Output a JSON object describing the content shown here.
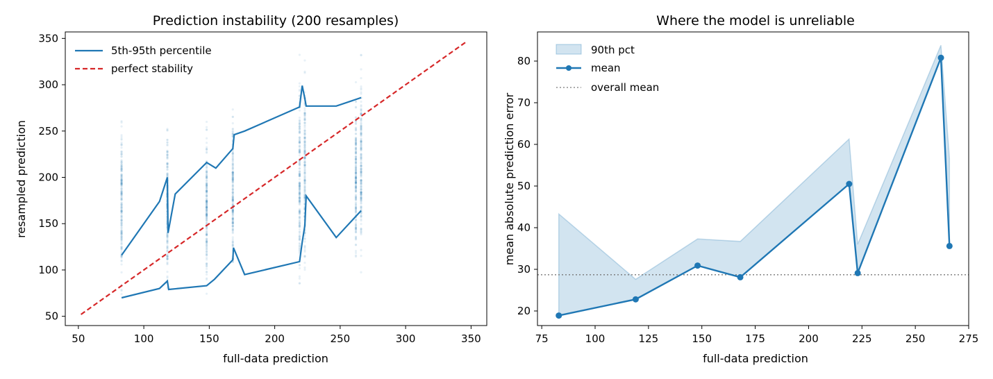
{
  "colors": {
    "blue": "#1f77b4",
    "red": "#d62728",
    "gray": "#777777"
  },
  "chart_data": [
    {
      "type": "scatter",
      "title": "Prediction instability (200 resamples)",
      "xlabel": "full-data prediction",
      "ylabel": "resampled prediction",
      "xlim": [
        40,
        362
      ],
      "ylim": [
        40,
        357
      ],
      "xticks": [
        50,
        100,
        150,
        200,
        250,
        300,
        350
      ],
      "yticks": [
        50,
        100,
        150,
        200,
        250,
        300,
        350
      ],
      "legend_position": "upper-left",
      "legend": [
        "5th-95th percentile",
        "perfect stability"
      ],
      "strips": [
        {
          "x": 83,
          "min": 59,
          "max": 280
        },
        {
          "x": 118,
          "min": 66,
          "max": 275
        },
        {
          "x": 148,
          "min": 52,
          "max": 275
        },
        {
          "x": 168,
          "min": 75,
          "max": 290
        },
        {
          "x": 219,
          "min": 52,
          "max": 345
        },
        {
          "x": 223,
          "min": 70,
          "max": 345
        },
        {
          "x": 262,
          "min": 80,
          "max": 318
        },
        {
          "x": 266,
          "min": 78,
          "max": 345
        }
      ],
      "percentile_upper": {
        "x": [
          83,
          112,
          118,
          118.5,
          124,
          148,
          155,
          168,
          169,
          177,
          219,
          221,
          223,
          224,
          247,
          266
        ],
        "y": [
          116,
          174,
          200,
          140,
          182,
          216,
          210,
          231,
          246,
          250,
          276,
          299,
          285,
          277,
          277,
          286
        ]
      },
      "percentile_lower": {
        "x": [
          83,
          112,
          118,
          119,
          148,
          154,
          168,
          168.5,
          177,
          219,
          221,
          223,
          224,
          247,
          266
        ],
        "y": [
          70,
          80,
          88,
          79,
          83,
          90,
          111,
          124,
          95,
          109,
          130,
          148,
          180,
          135,
          164
        ]
      },
      "reference_line": {
        "x": [
          52,
          346
        ],
        "y": [
          52,
          346
        ]
      }
    },
    {
      "type": "line",
      "title": "Where the model is unreliable",
      "xlabel": "full-data prediction",
      "ylabel": "mean absolute prediction error",
      "xlim": [
        73,
        275
      ],
      "ylim": [
        16.5,
        87
      ],
      "xticks": [
        75,
        100,
        125,
        150,
        175,
        200,
        225,
        250,
        275
      ],
      "yticks": [
        20,
        30,
        40,
        50,
        60,
        70,
        80
      ],
      "legend_position": "upper-left",
      "legend": [
        "90th pct",
        "mean",
        "overall mean"
      ],
      "x": [
        83,
        119,
        148,
        168,
        219,
        223,
        262,
        266
      ],
      "mean": [
        18.9,
        22.8,
        30.9,
        28.1,
        50.5,
        29.1,
        80.8,
        35.6
      ],
      "p90": [
        43.3,
        27.6,
        37.3,
        36.7,
        61.3,
        36.0,
        83.8,
        56.6
      ],
      "overall_mean": 28.7
    }
  ]
}
